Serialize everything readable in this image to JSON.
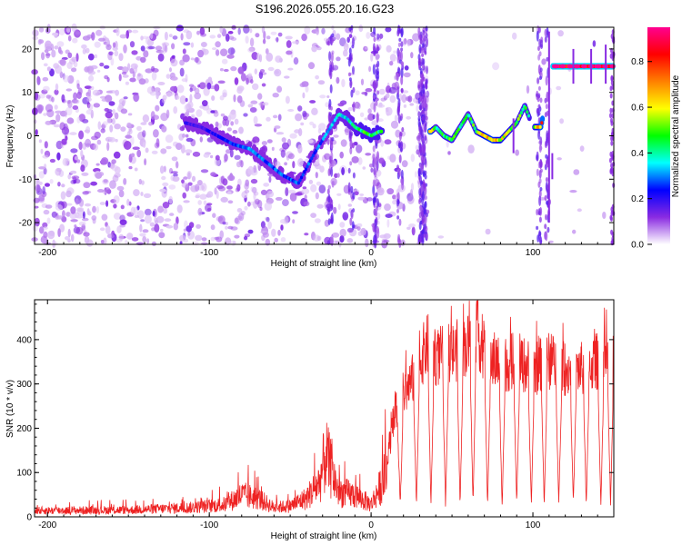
{
  "title": "S196.2026.055.20.16.G23",
  "colors": {
    "snr_line": "#ee2222",
    "axis": "#000000",
    "background": "#ffffff"
  },
  "chart_data": [
    {
      "type": "heatmap",
      "panel": "spectrogram",
      "xlabel": "Height of straight line (km)",
      "ylabel": "Frequency (Hz)",
      "xlim": [
        -208,
        150
      ],
      "ylim": [
        -25,
        25
      ],
      "x_ticks": [
        -200,
        -100,
        0,
        100
      ],
      "y_ticks": [
        -20,
        -10,
        0,
        10,
        20
      ],
      "x_tick_labels": [
        "-200",
        "-100",
        "0",
        "100"
      ],
      "y_tick_labels": [
        "-20",
        "-10",
        "0",
        "10",
        "20"
      ],
      "colorbar": {
        "label": "Normalized spectral amplitude",
        "range": [
          0,
          0.95
        ],
        "ticks": [
          0.0,
          0.2,
          0.4,
          0.6,
          0.8
        ],
        "tick_labels": [
          "0.0",
          "0.2",
          "0.4",
          "0.6",
          "0.8"
        ],
        "colormap": [
          "#ffffff",
          "#8a2be2",
          "#0000ff",
          "#00ffff",
          "#00ff00",
          "#ffff00",
          "#ff8000",
          "#ff0000",
          "#ff0090"
        ]
      },
      "signal_track": {
        "description": "dominant frequency vs height",
        "x": [
          -115,
          -105,
          -95,
          -85,
          -75,
          -65,
          -55,
          -45,
          -35,
          -25,
          -20,
          -15,
          -10,
          -5,
          0,
          5,
          37,
          40,
          45,
          50,
          55,
          60,
          65,
          70,
          75,
          80,
          85,
          90,
          95,
          100,
          105,
          112,
          120,
          130,
          140,
          150
        ],
        "y": [
          3,
          2,
          0,
          -2,
          -3,
          -6,
          -9,
          -11,
          -4,
          2,
          5,
          4,
          2,
          1,
          0,
          1,
          1,
          2,
          0,
          -1,
          2,
          5,
          1,
          0,
          -1,
          -1,
          1,
          3,
          7,
          2,
          2,
          16,
          16,
          16,
          16,
          16
        ],
        "amplitude": [
          0.2,
          0.2,
          0.25,
          0.3,
          0.35,
          0.3,
          0.3,
          0.3,
          0.3,
          0.35,
          0.4,
          0.4,
          0.45,
          0.5,
          0.5,
          0.5,
          0.8,
          0.45,
          0.5,
          0.55,
          0.5,
          0.45,
          0.55,
          0.7,
          0.75,
          0.65,
          0.6,
          0.55,
          0.5,
          0.5,
          0.8,
          0.95,
          0.95,
          0.95,
          0.95,
          0.95
        ]
      }
    },
    {
      "type": "line",
      "panel": "snr",
      "xlabel": "Height of straight line (km)",
      "ylabel": "SNR (10 * v/v)",
      "xlim": [
        -208,
        150
      ],
      "ylim": [
        0,
        490
      ],
      "x_ticks": [
        -200,
        -100,
        0,
        100
      ],
      "y_ticks": [
        0,
        100,
        200,
        300,
        400
      ],
      "x_tick_labels": [
        "-200",
        "-100",
        "0",
        "100"
      ],
      "y_tick_labels": [
        "0",
        "100",
        "200",
        "300",
        "400"
      ],
      "series": [
        {
          "name": "SNR",
          "envelope_x": [
            -208,
            -150,
            -110,
            -90,
            -80,
            -70,
            -60,
            -50,
            -40,
            -32,
            -28,
            -20,
            -10,
            0,
            5,
            10,
            15,
            20,
            25,
            30,
            35,
            40,
            50,
            60,
            65,
            70,
            80,
            90,
            100,
            110,
            120,
            130,
            140,
            150
          ],
          "envelope_y": [
            20,
            22,
            30,
            40,
            70,
            60,
            30,
            35,
            60,
            110,
            200,
            80,
            70,
            40,
            90,
            150,
            250,
            300,
            330,
            380,
            420,
            390,
            400,
            420,
            460,
            400,
            370,
            380,
            360,
            380,
            360,
            360,
            380,
            380
          ],
          "dropouts_x": [
            18,
            28,
            37,
            46,
            55,
            63,
            72,
            81,
            90,
            99,
            107,
            116,
            125,
            133,
            142,
            148
          ],
          "dropout_min": 20
        }
      ]
    }
  ]
}
